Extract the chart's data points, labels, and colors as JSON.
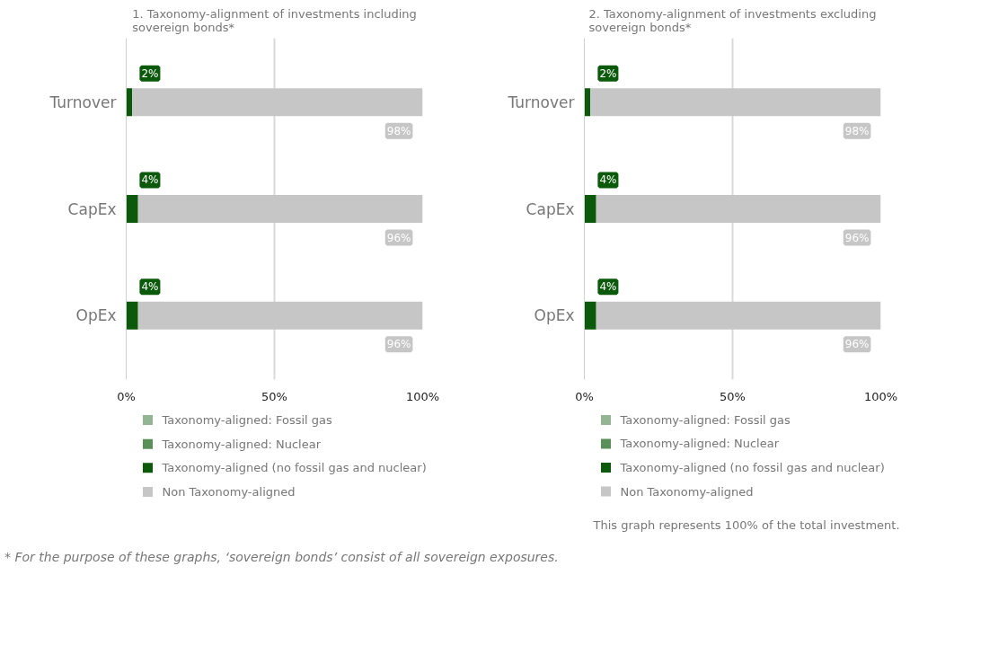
{
  "chart_data": [
    {
      "type": "bar",
      "orientation": "horizontal",
      "stacked": true,
      "title": "1. Taxonomy-alignment of investments including sovereign bonds*",
      "categories": [
        "Turnover",
        "CapEx",
        "OpEx"
      ],
      "series": [
        {
          "name": "Taxonomy-aligned: Fossil gas",
          "color": "#94b594",
          "values": [
            0,
            0,
            0
          ]
        },
        {
          "name": "Taxonomy-aligned: Nuclear",
          "color": "#5a8f5a",
          "values": [
            0,
            0,
            0
          ]
        },
        {
          "name": "Taxonomy-aligned (no fossil gas and nuclear)",
          "color": "#0b5a0b",
          "values": [
            2,
            4,
            4
          ],
          "value_labels": [
            "2%",
            "4%",
            "4%"
          ]
        },
        {
          "name": "Non Taxonomy-aligned",
          "color": "#c6c6c6",
          "values": [
            98,
            96,
            96
          ],
          "value_labels": [
            "98%",
            "96%",
            "96%"
          ]
        }
      ],
      "xlim": [
        0,
        100
      ],
      "xticks": [
        {
          "value": 0,
          "label": "0%"
        },
        {
          "value": 50,
          "label": "50%"
        },
        {
          "value": 100,
          "label": "100%"
        }
      ],
      "grid": "x",
      "legend": "bottom"
    },
    {
      "type": "bar",
      "orientation": "horizontal",
      "stacked": true,
      "title": "2. Taxonomy-alignment of investments excluding sovereign bonds*",
      "categories": [
        "Turnover",
        "CapEx",
        "OpEx"
      ],
      "series": [
        {
          "name": "Taxonomy-aligned: Fossil gas",
          "color": "#94b594",
          "values": [
            0,
            0,
            0
          ]
        },
        {
          "name": "Taxonomy-aligned: Nuclear",
          "color": "#5a8f5a",
          "values": [
            0,
            0,
            0
          ]
        },
        {
          "name": "Taxonomy-aligned (no fossil gas and nuclear)",
          "color": "#0b5a0b",
          "values": [
            2,
            4,
            4
          ],
          "value_labels": [
            "2%",
            "4%",
            "4%"
          ]
        },
        {
          "name": "Non Taxonomy-aligned",
          "color": "#c6c6c6",
          "values": [
            98,
            96,
            96
          ],
          "value_labels": [
            "98%",
            "96%",
            "96%"
          ]
        }
      ],
      "xlim": [
        0,
        100
      ],
      "xticks": [
        {
          "value": 0,
          "label": "0%"
        },
        {
          "value": 50,
          "label": "50%"
        },
        {
          "value": 100,
          "label": "100%"
        }
      ],
      "grid": "x",
      "legend": "bottom",
      "annotations": [
        "This graph represents 100% of the total investment.",
        "* For the purpose of these graphs, ‘sovereign bonds’ consist of all sovereign exposures."
      ]
    }
  ]
}
